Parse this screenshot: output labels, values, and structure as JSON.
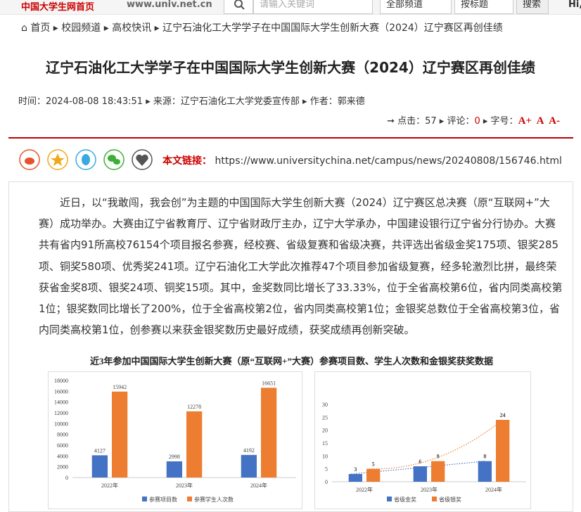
{
  "header": {
    "logo": "中国大学生网首页",
    "domain": "www.univ.net.cn",
    "search_placeholder": "请输入关键词",
    "channel": "全部频道",
    "sort": "按标题",
    "search_button": "搜索",
    "greeting": "Hi,"
  },
  "breadcrumb": [
    "首页",
    "校园频道",
    "高校快讯",
    "辽宁石油化工大学学子在中国国际大学生创新大赛（2024）辽宁赛区再创佳绩"
  ],
  "article": {
    "title": "辽宁石油化工大学学子在中国国际大学生创新大赛（2024）辽宁赛区再创佳绩",
    "time": "时间：2024-08-08 18:43:51",
    "source": "来源：辽宁石油化工大学党委宣传部",
    "author": "作者：郭来德",
    "clicks_label": "点击：",
    "clicks": 57,
    "comments_label": "评论：",
    "comments": 0,
    "font_label": "字号：",
    "font_options": [
      "A+",
      "A",
      "A-"
    ],
    "link_label": "本文链接：",
    "link": "https://www.universitychina.net/campus/news/20240808/156746.html",
    "body": "近日，以“我敢闯，我会创”为主题的中国国际大学生创新大赛（2024）辽宁赛区总决赛（原“互联网+”大赛）成功举办。大赛由辽宁省教育厅、辽宁省财政厅主办，辽宁大学承办，中国建设银行辽宁省分行协办。大赛共有省内91所高校76154个项目报名参赛，经校赛、省级复赛和省级决赛，共评选出省级金奖175项、银奖285项、铜奖580项、优秀奖241项。辽宁石油化工大学此次推荐47个项目参加省级复赛，经多轮激烈比拼，最终荣获省金奖8项、银奖24项、铜奖15项。其中，金奖数同比增长了33.33%，位于全省高校第6位，省内同类高校第1位；银奖数同比增长了200%，位于全省高校第2位，省内同类高校第1位；金银奖总数位于全省高校第3位，省内同类高校第1位，创参赛以来获金银奖数历史最好成绩，获奖成绩再创新突破。",
    "figure_title": "近3年参加中国国际大学生创新大赛（原“互联网+”大赛）参赛项目数、学生人次数和金银奖获奖数据"
  },
  "chart_data": [
    {
      "type": "bar",
      "categories": [
        "2022年",
        "2023年",
        "2024年"
      ],
      "series": [
        {
          "name": "参赛项目数",
          "color": "#4472c4",
          "values": [
            4127,
            2998,
            4192
          ]
        },
        {
          "name": "参赛学生人次数",
          "color": "#ed7d31",
          "values": [
            15942,
            12278,
            16651
          ]
        }
      ],
      "ylim": [
        0,
        18000
      ],
      "yticks": [
        0,
        2000,
        4000,
        6000,
        8000,
        10000,
        12000,
        14000,
        16000,
        18000
      ],
      "grid": false,
      "legend": "bottom"
    },
    {
      "type": "bar",
      "categories": [
        "2022年",
        "2023年",
        "2024年"
      ],
      "series": [
        {
          "name": "省级金奖",
          "color": "#4472c4",
          "values": [
            3,
            6,
            8
          ]
        },
        {
          "name": "省级银奖",
          "color": "#ed7d31",
          "values": [
            5,
            8,
            24
          ]
        }
      ],
      "ylim": [
        0,
        30
      ],
      "yticks": [
        0,
        5,
        10,
        15,
        20,
        25,
        30
      ],
      "grid": false,
      "legend": "bottom",
      "trendline": true
    }
  ]
}
